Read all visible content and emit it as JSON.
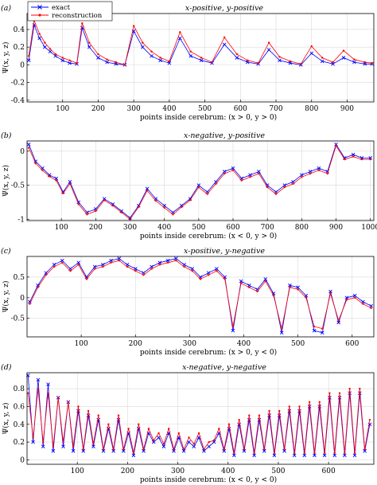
{
  "chart_data": [
    {
      "type": "line",
      "panel_label": "(a)",
      "title": "x-positive, y-positive",
      "xlabel": "points inside cerebrum: (x > 0, y > 0)",
      "ylabel": "Ψ(x, y, z)",
      "xlim": [
        0,
        975
      ],
      "ylim": [
        -0.42,
        0.58
      ],
      "xticks": [
        100,
        200,
        300,
        400,
        500,
        600,
        700,
        800,
        900
      ],
      "yticks": [
        -0.4,
        -0.2,
        0,
        0.2,
        0.4
      ],
      "ytick_labels": [
        "-0.4",
        "-0.2",
        "0",
        "0.2",
        "0.4"
      ],
      "grid": true,
      "legend": {
        "placement": "top-left",
        "entries": [
          {
            "name": "exact",
            "color": "#0000ff",
            "marker": "x"
          },
          {
            "name": "reconstruction",
            "color": "#ff0000",
            "marker": "."
          }
        ]
      },
      "series": [
        {
          "name": "exact",
          "color": "#0000ff",
          "x": [
            5,
            20,
            35,
            50,
            65,
            80,
            100,
            120,
            140,
            155,
            175,
            200,
            225,
            250,
            275,
            300,
            325,
            350,
            375,
            400,
            430,
            460,
            490,
            520,
            555,
            590,
            620,
            650,
            680,
            710,
            740,
            770,
            800,
            830,
            860,
            890,
            920,
            950,
            970
          ],
          "y": [
            0.05,
            0.45,
            0.3,
            0.2,
            0.15,
            0.1,
            0.05,
            0.02,
            0.01,
            0.42,
            0.2,
            0.08,
            0.03,
            0.01,
            0.0,
            0.38,
            0.2,
            0.1,
            0.05,
            0.02,
            0.3,
            0.1,
            0.05,
            0.02,
            0.23,
            0.08,
            0.03,
            0.01,
            0.17,
            0.05,
            0.02,
            0.0,
            0.13,
            0.04,
            0.01,
            0.08,
            0.03,
            0.01,
            0.01
          ]
        },
        {
          "name": "reconstruction",
          "color": "#ff0000",
          "x": [
            5,
            20,
            35,
            50,
            65,
            80,
            100,
            120,
            140,
            155,
            175,
            200,
            225,
            250,
            275,
            300,
            325,
            350,
            375,
            400,
            430,
            460,
            490,
            520,
            555,
            590,
            620,
            650,
            680,
            710,
            740,
            770,
            800,
            830,
            860,
            890,
            920,
            950,
            970
          ],
          "y": [
            0.1,
            0.5,
            0.35,
            0.25,
            0.18,
            0.12,
            0.08,
            0.05,
            0.02,
            0.47,
            0.25,
            0.12,
            0.06,
            0.03,
            0.0,
            0.44,
            0.25,
            0.15,
            0.08,
            0.04,
            0.37,
            0.15,
            0.08,
            0.03,
            0.31,
            0.12,
            0.05,
            0.02,
            0.25,
            0.09,
            0.04,
            0.01,
            0.21,
            0.08,
            0.03,
            0.16,
            0.06,
            0.03,
            0.02
          ]
        }
      ]
    },
    {
      "type": "line",
      "panel_label": "(b)",
      "title": "x-negative, y-positive",
      "xlabel": "points inside cerebrum: (x < 0, y > 0)",
      "ylabel": "Ψ(x, y, z)",
      "xlim": [
        0,
        1010
      ],
      "ylim": [
        -1.02,
        0.15
      ],
      "xticks": [
        100,
        200,
        300,
        400,
        500,
        600,
        700,
        800,
        900,
        1000
      ],
      "yticks": [
        -1,
        -0.5,
        0
      ],
      "ytick_labels": [
        "-1",
        "-0.5",
        "0"
      ],
      "grid": true,
      "series": [
        {
          "name": "exact",
          "color": "#0000ff",
          "x": [
            5,
            25,
            45,
            65,
            85,
            105,
            125,
            150,
            175,
            200,
            225,
            250,
            275,
            300,
            325,
            350,
            375,
            400,
            425,
            450,
            475,
            500,
            525,
            550,
            575,
            600,
            625,
            650,
            675,
            700,
            725,
            750,
            775,
            800,
            825,
            850,
            875,
            900,
            925,
            950,
            975,
            1000
          ],
          "y": [
            0.1,
            -0.15,
            -0.25,
            -0.35,
            -0.4,
            -0.6,
            -0.45,
            -0.75,
            -0.9,
            -0.85,
            -0.7,
            -0.78,
            -0.88,
            -0.98,
            -0.8,
            -0.55,
            -0.7,
            -0.8,
            -0.9,
            -0.8,
            -0.7,
            -0.5,
            -0.6,
            -0.45,
            -0.3,
            -0.25,
            -0.4,
            -0.35,
            -0.3,
            -0.5,
            -0.6,
            -0.5,
            -0.45,
            -0.35,
            -0.3,
            -0.25,
            -0.3,
            0.1,
            -0.1,
            -0.05,
            -0.1,
            -0.1
          ]
        },
        {
          "name": "reconstruction",
          "color": "#ff0000",
          "x": [
            5,
            25,
            45,
            65,
            85,
            105,
            125,
            150,
            175,
            200,
            225,
            250,
            275,
            300,
            325,
            350,
            375,
            400,
            425,
            450,
            475,
            500,
            525,
            550,
            575,
            600,
            625,
            650,
            675,
            700,
            725,
            750,
            775,
            800,
            825,
            850,
            875,
            900,
            925,
            950,
            975,
            1000
          ],
          "y": [
            0.05,
            -0.18,
            -0.28,
            -0.37,
            -0.43,
            -0.62,
            -0.48,
            -0.78,
            -0.93,
            -0.88,
            -0.72,
            -0.8,
            -0.9,
            -1.0,
            -0.82,
            -0.58,
            -0.73,
            -0.83,
            -0.93,
            -0.82,
            -0.72,
            -0.53,
            -0.63,
            -0.48,
            -0.33,
            -0.28,
            -0.43,
            -0.38,
            -0.33,
            -0.53,
            -0.63,
            -0.53,
            -0.48,
            -0.38,
            -0.33,
            -0.28,
            -0.33,
            0.08,
            -0.12,
            -0.08,
            -0.12,
            -0.12
          ]
        }
      ]
    },
    {
      "type": "line",
      "panel_label": "(c)",
      "title": "x-positive, y-negative",
      "xlabel": "points inside cerebrum: (x > 0, y < 0)",
      "ylabel": "Ψ(x, y, z)",
      "xlim": [
        0,
        640
      ],
      "ylim": [
        -0.95,
        1.0
      ],
      "xticks": [
        100,
        200,
        300,
        400,
        500,
        600
      ],
      "yticks": [
        -0.5,
        0,
        0.5
      ],
      "ytick_labels": [
        "-0.5",
        "0",
        "0.5"
      ],
      "grid": true,
      "series": [
        {
          "name": "exact",
          "color": "#0000ff",
          "x": [
            5,
            20,
            35,
            50,
            65,
            80,
            95,
            110,
            125,
            140,
            155,
            170,
            185,
            200,
            215,
            230,
            245,
            260,
            275,
            290,
            305,
            320,
            335,
            350,
            365,
            380,
            395,
            410,
            425,
            440,
            455,
            470,
            485,
            500,
            515,
            530,
            545,
            560,
            575,
            590,
            605,
            620,
            635
          ],
          "y": [
            -0.1,
            0.3,
            0.6,
            0.8,
            0.9,
            0.7,
            0.85,
            0.5,
            0.75,
            0.8,
            0.9,
            0.95,
            0.8,
            0.7,
            0.6,
            0.75,
            0.85,
            0.9,
            0.95,
            0.8,
            0.7,
            0.5,
            0.6,
            0.7,
            0.5,
            -0.8,
            0.4,
            0.3,
            0.2,
            0.45,
            0.1,
            -0.85,
            0.3,
            0.25,
            0.05,
            -0.8,
            -0.85,
            0.15,
            -0.6,
            0.0,
            0.05,
            -0.1,
            -0.2
          ]
        },
        {
          "name": "reconstruction",
          "color": "#ff0000",
          "x": [
            5,
            20,
            35,
            50,
            65,
            80,
            95,
            110,
            125,
            140,
            155,
            170,
            185,
            200,
            215,
            230,
            245,
            260,
            275,
            290,
            305,
            320,
            335,
            350,
            365,
            380,
            395,
            410,
            425,
            440,
            455,
            470,
            485,
            500,
            515,
            530,
            545,
            560,
            575,
            590,
            605,
            620,
            635
          ],
          "y": [
            -0.15,
            0.25,
            0.55,
            0.75,
            0.85,
            0.65,
            0.8,
            0.45,
            0.7,
            0.75,
            0.85,
            0.9,
            0.75,
            0.65,
            0.55,
            0.7,
            0.8,
            0.85,
            0.9,
            0.75,
            0.65,
            0.45,
            0.55,
            0.65,
            0.45,
            -0.7,
            0.35,
            0.25,
            0.15,
            0.4,
            0.05,
            -0.75,
            0.25,
            0.2,
            0.0,
            -0.7,
            -0.75,
            0.1,
            -0.55,
            -0.05,
            0.0,
            -0.15,
            -0.25
          ]
        }
      ]
    },
    {
      "type": "line",
      "panel_label": "(d)",
      "title": "x-negative, y-negative",
      "xlabel": "points inside cerebrum: (x < 0, y < 0)",
      "ylabel": "Ψ(x, y, z)",
      "xlim": [
        0,
        690
      ],
      "ylim": [
        -0.05,
        0.98
      ],
      "xticks": [
        100,
        200,
        300,
        400,
        500,
        600
      ],
      "yticks": [
        0,
        0.2,
        0.4,
        0.6,
        0.8
      ],
      "ytick_labels": [
        "0",
        "0.2",
        "0.4",
        "0.6",
        "0.8"
      ],
      "grid": true,
      "series": [
        {
          "name": "exact",
          "color": "#0000ff",
          "x": [
            2,
            12,
            22,
            32,
            42,
            52,
            62,
            72,
            82,
            92,
            102,
            112,
            122,
            132,
            142,
            152,
            162,
            172,
            182,
            192,
            202,
            212,
            222,
            232,
            242,
            252,
            262,
            272,
            282,
            292,
            302,
            312,
            322,
            332,
            342,
            352,
            362,
            372,
            382,
            392,
            402,
            412,
            422,
            432,
            442,
            452,
            462,
            472,
            482,
            492,
            502,
            512,
            522,
            532,
            542,
            552,
            562,
            572,
            582,
            592,
            602,
            612,
            622,
            632,
            642,
            652,
            662,
            672,
            682
          ],
          "y": [
            0.95,
            0.2,
            0.9,
            0.15,
            0.85,
            0.1,
            0.7,
            0.15,
            0.65,
            0.1,
            0.55,
            0.1,
            0.5,
            0.15,
            0.45,
            0.1,
            0.35,
            0.1,
            0.45,
            0.1,
            0.3,
            0.05,
            0.35,
            0.1,
            0.3,
            0.2,
            0.25,
            0.15,
            0.3,
            0.1,
            0.25,
            0.1,
            0.2,
            0.15,
            0.25,
            0.1,
            0.15,
            0.2,
            0.3,
            0.1,
            0.35,
            0.05,
            0.4,
            0.1,
            0.45,
            0.05,
            0.45,
            0.1,
            0.5,
            0.05,
            0.5,
            0.1,
            0.55,
            0.05,
            0.55,
            0.05,
            0.6,
            0.05,
            0.6,
            0.05,
            0.7,
            0.05,
            0.7,
            0.05,
            0.75,
            0.05,
            0.75,
            0.1,
            0.4
          ]
        },
        {
          "name": "reconstruction",
          "color": "#ff0000",
          "x": [
            2,
            12,
            22,
            32,
            42,
            52,
            62,
            72,
            82,
            92,
            102,
            112,
            122,
            132,
            142,
            152,
            162,
            172,
            182,
            192,
            202,
            212,
            222,
            232,
            242,
            252,
            262,
            272,
            282,
            292,
            302,
            312,
            322,
            332,
            342,
            352,
            362,
            372,
            382,
            392,
            402,
            412,
            422,
            432,
            442,
            452,
            462,
            472,
            482,
            492,
            502,
            512,
            522,
            532,
            542,
            552,
            562,
            572,
            582,
            592,
            602,
            612,
            622,
            632,
            642,
            652,
            662,
            672,
            682
          ],
          "y": [
            0.75,
            0.25,
            0.8,
            0.2,
            0.75,
            0.15,
            0.7,
            0.2,
            0.65,
            0.15,
            0.6,
            0.12,
            0.55,
            0.18,
            0.5,
            0.12,
            0.4,
            0.12,
            0.5,
            0.12,
            0.35,
            0.08,
            0.4,
            0.12,
            0.35,
            0.22,
            0.3,
            0.18,
            0.35,
            0.12,
            0.3,
            0.12,
            0.25,
            0.18,
            0.3,
            0.12,
            0.2,
            0.22,
            0.35,
            0.12,
            0.4,
            0.08,
            0.45,
            0.12,
            0.5,
            0.08,
            0.5,
            0.12,
            0.55,
            0.08,
            0.55,
            0.12,
            0.6,
            0.08,
            0.6,
            0.08,
            0.65,
            0.08,
            0.65,
            0.08,
            0.75,
            0.08,
            0.75,
            0.08,
            0.8,
            0.08,
            0.8,
            0.12,
            0.45
          ]
        }
      ]
    }
  ]
}
